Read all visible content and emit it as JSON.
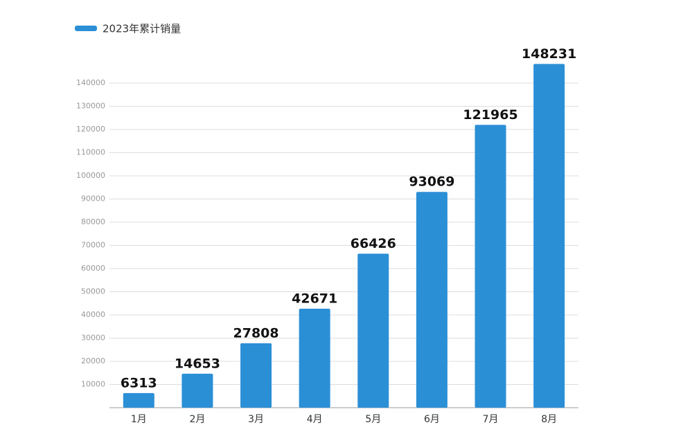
{
  "chart_data": {
    "type": "bar",
    "categories": [
      "1月",
      "2月",
      "3月",
      "4月",
      "5月",
      "6月",
      "7月",
      "8月"
    ],
    "series": [
      {
        "name": "2023年累计销量",
        "color": "#2b8fd6",
        "values": [
          6313,
          14653,
          27808,
          42671,
          66426,
          93069,
          121965,
          148231
        ]
      }
    ],
    "ylim": [
      0,
      150000
    ],
    "yticks": [
      10000,
      20000,
      30000,
      40000,
      50000,
      60000,
      70000,
      80000,
      90000,
      100000,
      110000,
      120000,
      130000,
      140000
    ],
    "grid": true,
    "legend": "top-left"
  }
}
